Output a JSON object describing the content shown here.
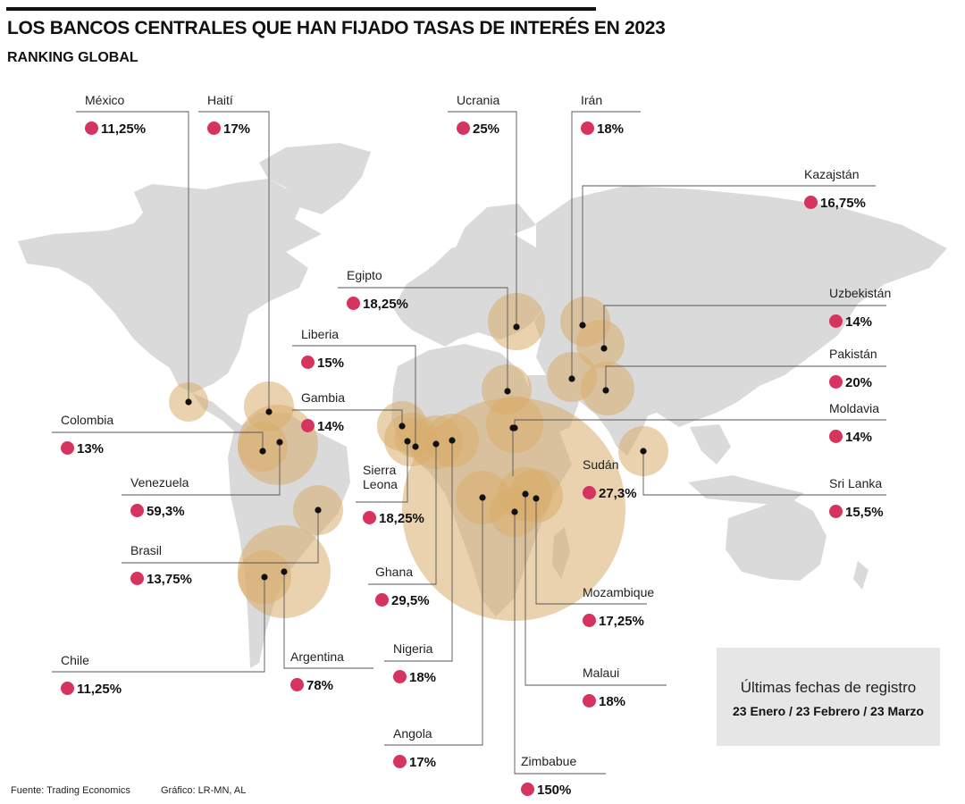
{
  "header": {
    "title": "LOS BANCOS CENTRALES QUE HAN FIJADO TASAS DE INTERÉS EN 2023",
    "subtitle": "RANKING GLOBAL"
  },
  "colors": {
    "bubble": "#d9ad6b",
    "dot_marker": "#d6335f",
    "land": "#dadada",
    "leader": "#555555"
  },
  "countries": [
    {
      "name": "México",
      "rate": "11,25%",
      "rate_value": 11.25
    },
    {
      "name": "Haití",
      "rate": "17%",
      "rate_value": 17
    },
    {
      "name": "Ucrania",
      "rate": "25%",
      "rate_value": 25
    },
    {
      "name": "Irán",
      "rate": "18%",
      "rate_value": 18
    },
    {
      "name": "Kazajstán",
      "rate": "16,75%",
      "rate_value": 16.75
    },
    {
      "name": "Egipto",
      "rate": "18,25%",
      "rate_value": 18.25
    },
    {
      "name": "Uzbekistán",
      "rate": "14%",
      "rate_value": 14
    },
    {
      "name": "Liberia",
      "rate": "15%",
      "rate_value": 15
    },
    {
      "name": "Pakistán",
      "rate": "20%",
      "rate_value": 20
    },
    {
      "name": "Gambia",
      "rate": "14%",
      "rate_value": 14
    },
    {
      "name": "Colombia",
      "rate": "13%",
      "rate_value": 13
    },
    {
      "name": "Moldavia",
      "rate": "14%",
      "rate_value": 14
    },
    {
      "name": "Sudán",
      "rate": "27,3%",
      "rate_value": 27.3
    },
    {
      "name": "Venezuela",
      "rate": "59,3%",
      "rate_value": 59.3
    },
    {
      "name": "Sierra Leona",
      "rate": "18,25%",
      "rate_value": 18.25
    },
    {
      "name": "Sri Lanka",
      "rate": "15,5%",
      "rate_value": 15.5
    },
    {
      "name": "Brasil",
      "rate": "13,75%",
      "rate_value": 13.75
    },
    {
      "name": "Ghana",
      "rate": "29,5%",
      "rate_value": 29.5
    },
    {
      "name": "Mozambique",
      "rate": "17,25%",
      "rate_value": 17.25
    },
    {
      "name": "Chile",
      "rate": "11,25%",
      "rate_value": 11.25
    },
    {
      "name": "Argentina",
      "rate": "78%",
      "rate_value": 78
    },
    {
      "name": "Nigeria",
      "rate": "18%",
      "rate_value": 18
    },
    {
      "name": "Malaui",
      "rate": "18%",
      "rate_value": 18
    },
    {
      "name": "Angola",
      "rate": "17%",
      "rate_value": 17
    },
    {
      "name": "Zimbabue",
      "rate": "150%",
      "rate_value": 150
    }
  ],
  "legend": {
    "title": "Últimas fechas de registro",
    "dates": "23 Enero / 23 Febrero / 23 Marzo"
  },
  "footer": {
    "source": "Fuente: Trading Economics",
    "credit": "Gráfico: LR-MN, AL"
  }
}
